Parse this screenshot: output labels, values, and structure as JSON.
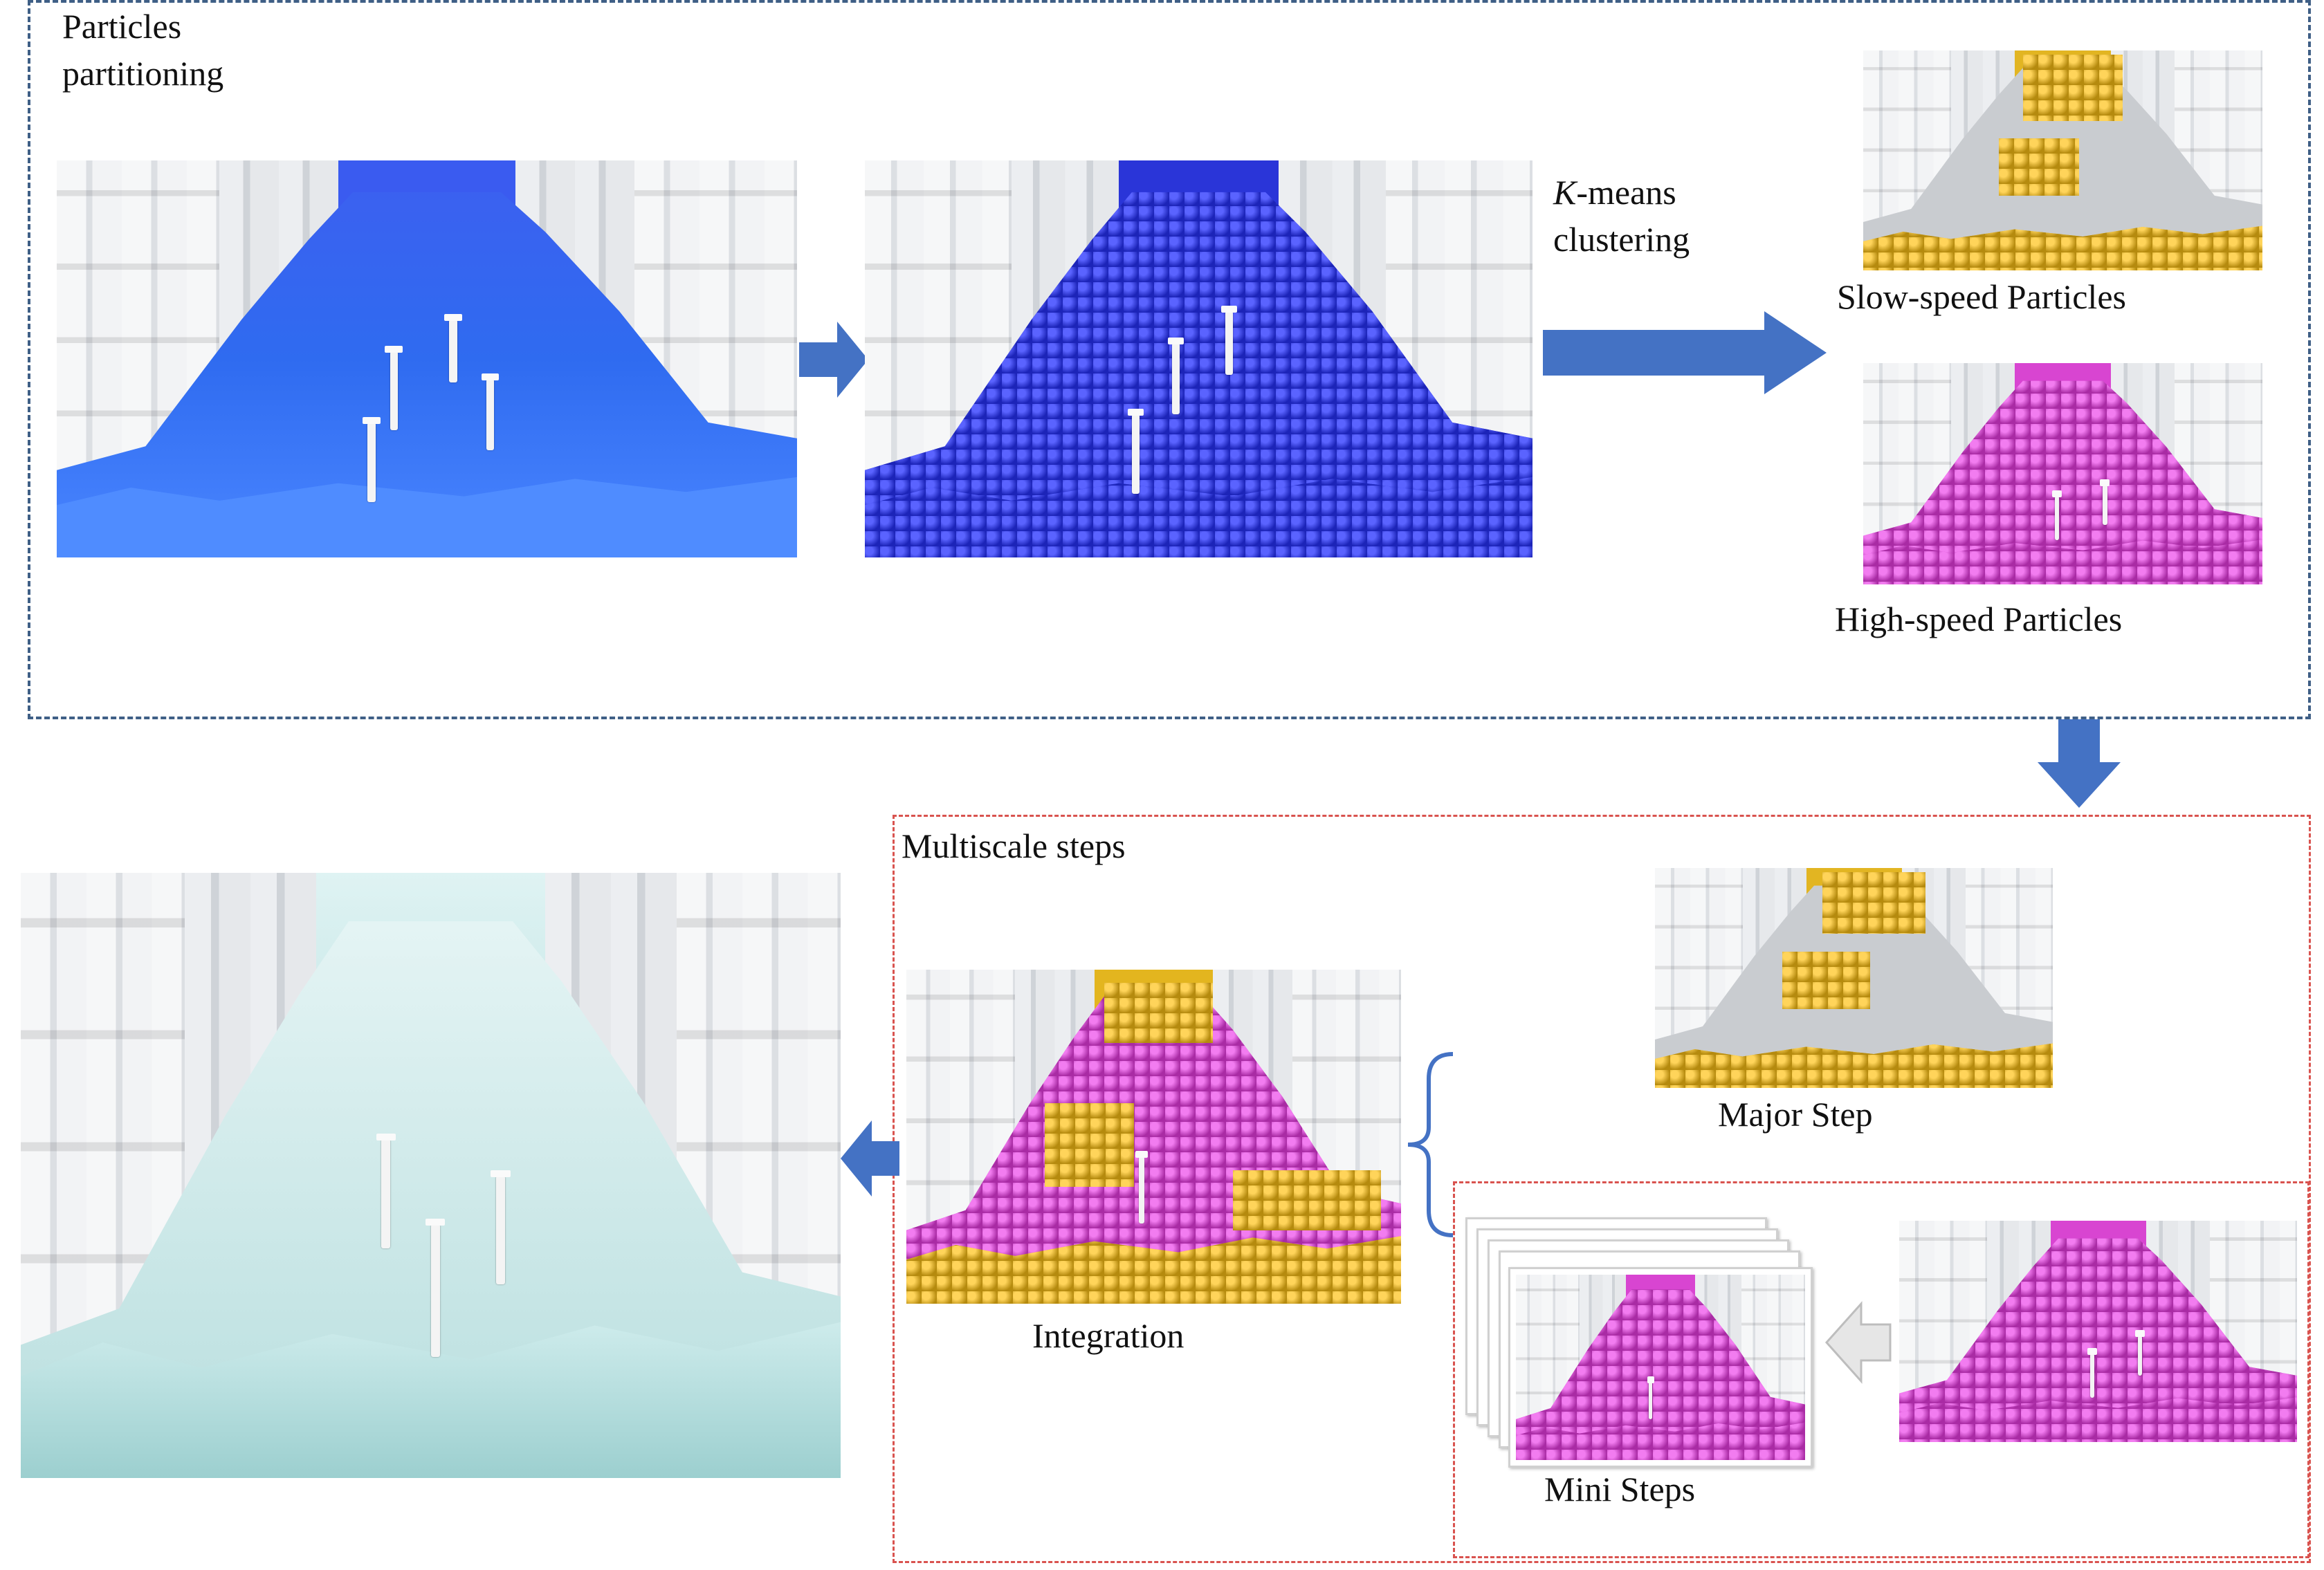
{
  "labels": {
    "particles_partitioning_line1": "Particles",
    "particles_partitioning_line2": "partitioning",
    "kmeans_italic": "K",
    "kmeans_rest": "-means",
    "clustering": "clustering",
    "slow_speed": "Slow-speed Particles",
    "high_speed": "High-speed Particles",
    "multiscale_steps": "Multiscale steps",
    "major_step": "Major Step",
    "integration": "Integration",
    "mini_steps": "Mini Steps"
  },
  "colors": {
    "blue_box": "#3f5f86",
    "red_box": "#d9534f",
    "arrow_blue": "#4472c4",
    "arrow_gray": "#e6e6e6",
    "particles_blue": "#2b37e6",
    "particles_yellow": "#e6b21f",
    "particles_pink": "#d943d3",
    "water": "#bfe3e3"
  }
}
